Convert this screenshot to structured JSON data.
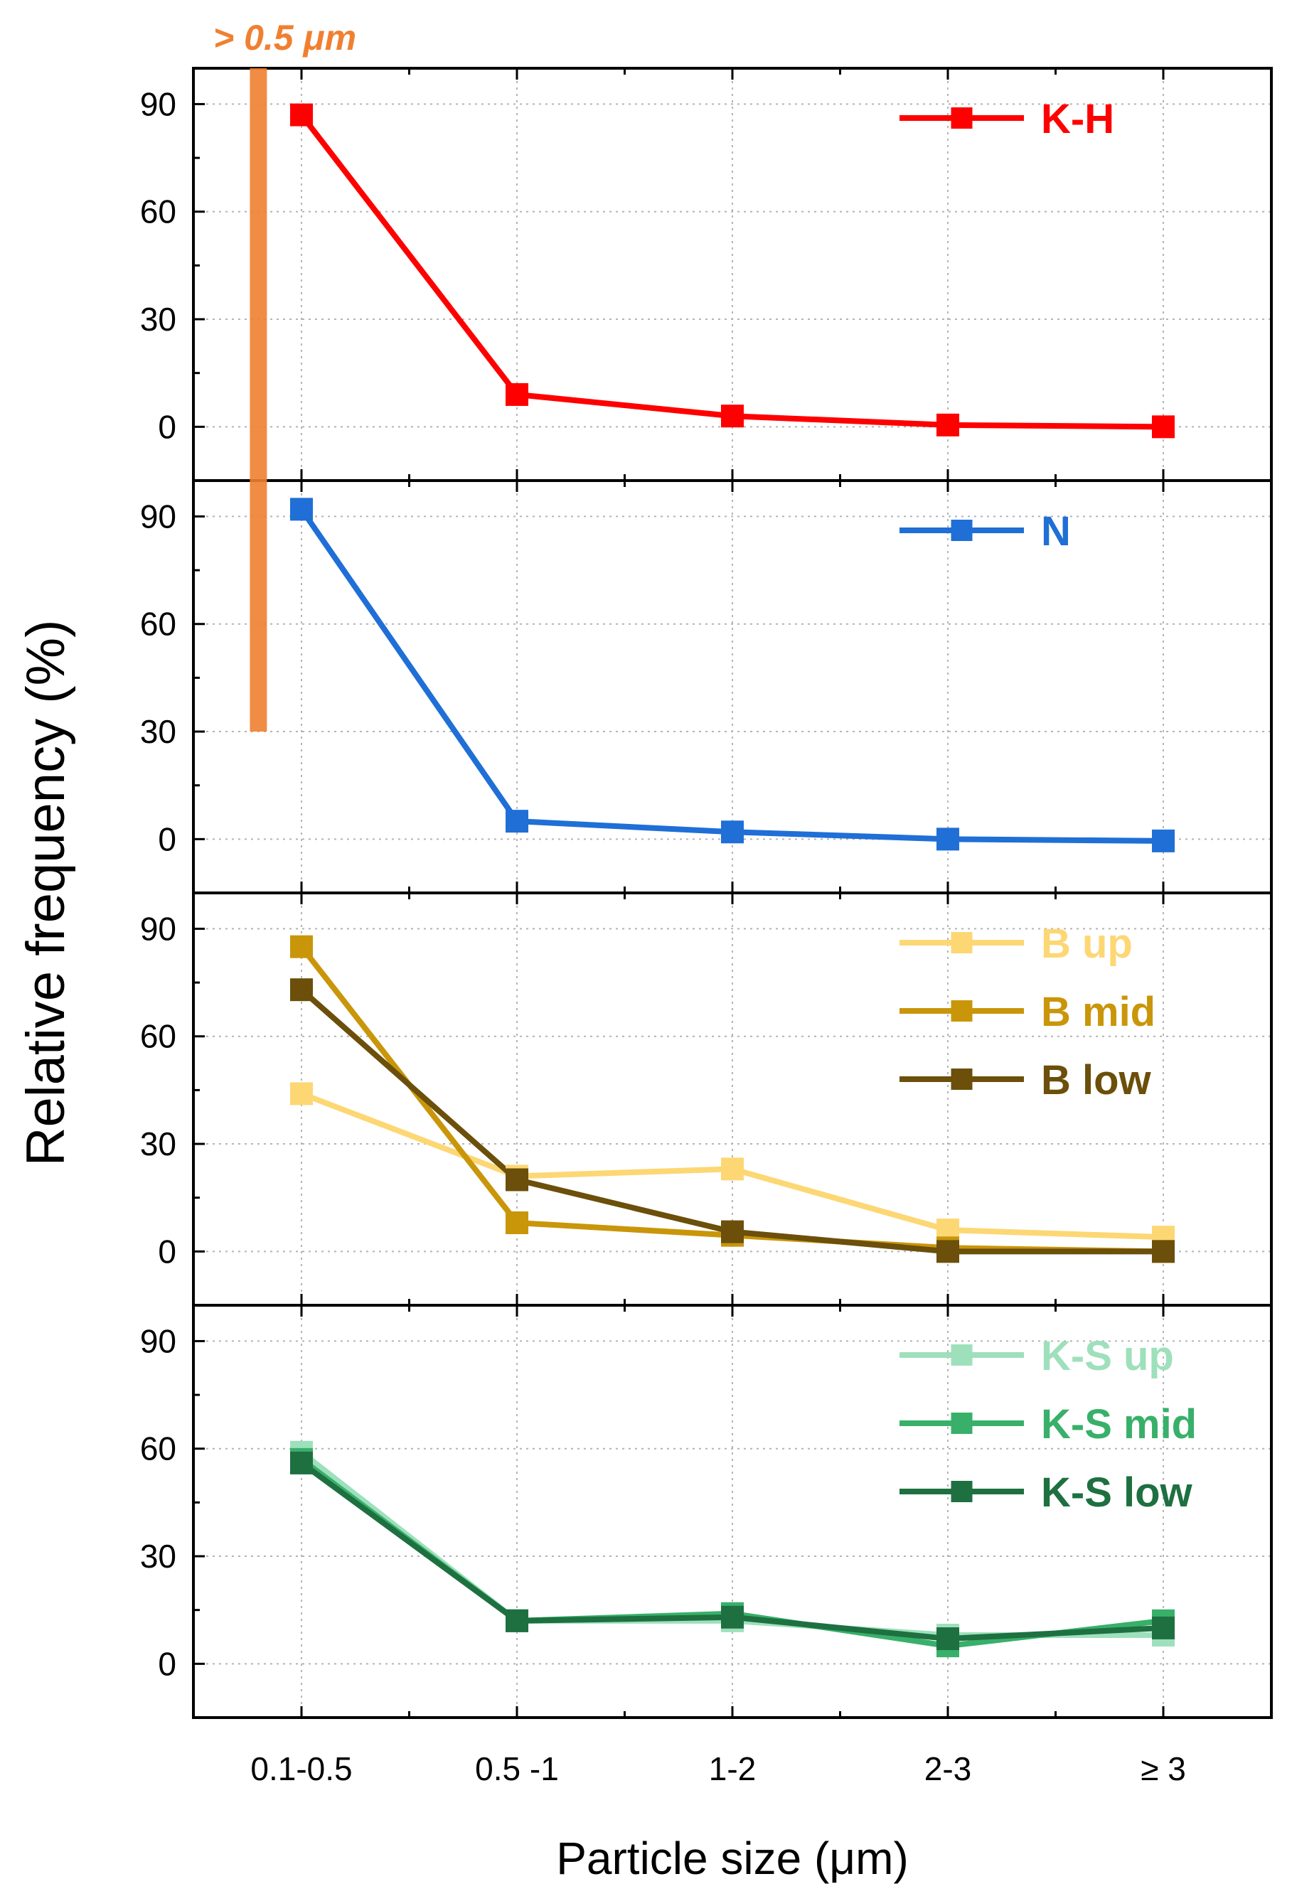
{
  "chart_data": {
    "type": "line",
    "ylabel": "Relative frequency (%)",
    "xlabel": "Particle size (μm)",
    "categories": [
      "0.1-0.5",
      "0.5 -1",
      "1-2",
      "2-3",
      "≥ 3"
    ],
    "yticks": [
      "90",
      "60",
      "30",
      "0"
    ],
    "ylim": [
      -15,
      100
    ],
    "grid": true,
    "annotation": {
      "text": "> 0.5 μm",
      "color": "#f08030",
      "category_position": -0.2,
      "from_top_panel": 0,
      "to_value_panel": 1,
      "to_value": 30
    },
    "panels": [
      {
        "name": "K-H",
        "series": [
          {
            "name": "K-H",
            "color": "#ff0000",
            "values": [
              87,
              9,
              3,
              0.5,
              0
            ]
          }
        ]
      },
      {
        "name": "N",
        "series": [
          {
            "name": "N",
            "color": "#1f6fd6",
            "values": [
              92,
              5,
              2,
              0,
              -0.5
            ]
          }
        ]
      },
      {
        "name": "B",
        "series": [
          {
            "name": "B up",
            "color": "#fcd774",
            "values": [
              44,
              21,
              23,
              6,
              4
            ]
          },
          {
            "name": "B mid",
            "color": "#c9960a",
            "values": [
              85,
              8,
              4.5,
              1,
              0
            ]
          },
          {
            "name": "B low",
            "color": "#6b4f0a",
            "values": [
              73,
              20,
              5.5,
              0,
              0
            ]
          }
        ]
      },
      {
        "name": "K-S",
        "series": [
          {
            "name": "K-S up",
            "color": "#9ee0bc",
            "values": [
              59,
              12,
              12,
              8,
              8
            ]
          },
          {
            "name": "K-S mid",
            "color": "#38b06a",
            "values": [
              57,
              12,
              14,
              5,
              12
            ]
          },
          {
            "name": "K-S low",
            "color": "#1e7040",
            "values": [
              56,
              12,
              13,
              7,
              10
            ]
          }
        ]
      }
    ]
  }
}
